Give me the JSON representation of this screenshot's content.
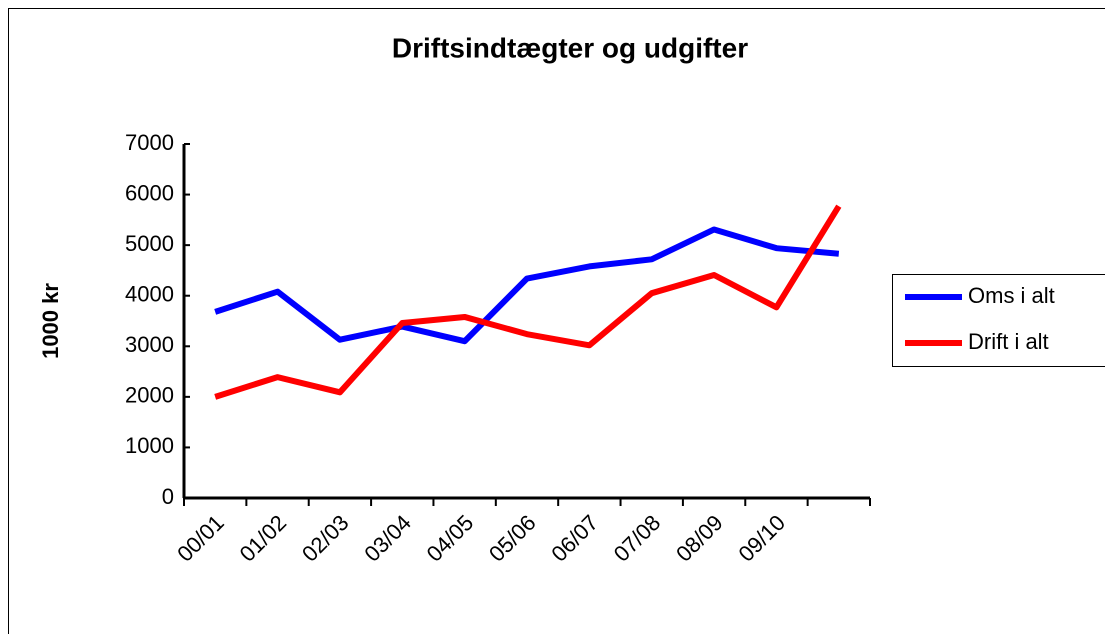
{
  "chart_data": {
    "type": "line",
    "title": "Driftsindtægter og udgifter",
    "ylabel": "1000 kr",
    "categories": [
      "00/01",
      "01/02",
      "02/03",
      "03/04",
      "04/05",
      "05/06",
      "06/07",
      "07/08",
      "08/09",
      "09/10",
      null
    ],
    "series": [
      {
        "name": "Oms i alt",
        "color": "#0000ff",
        "values": [
          3680,
          4080,
          3130,
          3390,
          3100,
          4340,
          4580,
          4720,
          5310,
          4940,
          4830
        ]
      },
      {
        "name": "Drift i alt",
        "color": "#ff0000",
        "values": [
          2000,
          2390,
          2090,
          3460,
          3580,
          3240,
          3020,
          4050,
          4410,
          3770,
          5770
        ]
      }
    ],
    "ylim": [
      0,
      7000
    ],
    "yticks": [
      0,
      1000,
      2000,
      3000,
      4000,
      5000,
      6000,
      7000
    ],
    "legend": "right"
  }
}
